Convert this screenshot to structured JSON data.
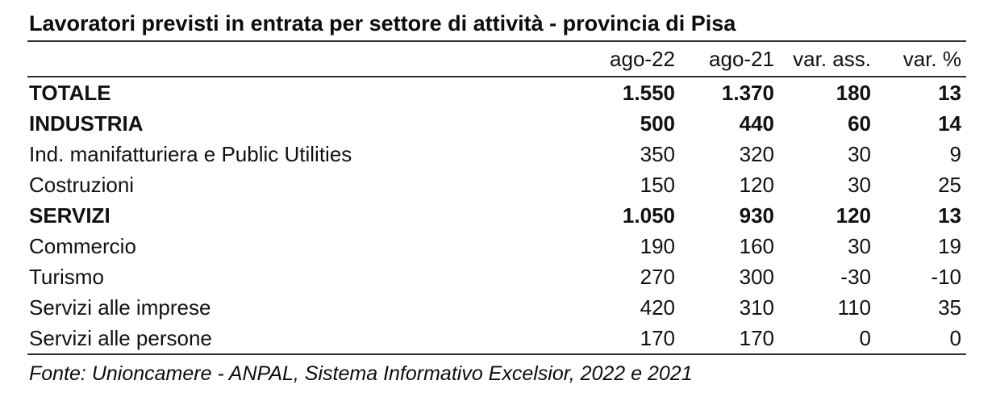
{
  "title": "Lavoratori previsti in entrata per settore di attività - provincia di Pisa",
  "table": {
    "columns": [
      "ago-22",
      "ago-21",
      "var. ass.",
      "var. %"
    ],
    "rows": [
      {
        "label": "TOTALE",
        "ago_22": "1.550",
        "ago_21": "1.370",
        "var_ass": "180",
        "var_pct": "13",
        "emphasis": true
      },
      {
        "label": "INDUSTRIA",
        "ago_22": "500",
        "ago_21": "440",
        "var_ass": "60",
        "var_pct": "14",
        "emphasis": true
      },
      {
        "label": "Ind. manifatturiera e Public Utilities",
        "ago_22": "350",
        "ago_21": "320",
        "var_ass": "30",
        "var_pct": "9",
        "emphasis": false
      },
      {
        "label": "Costruzioni",
        "ago_22": "150",
        "ago_21": "120",
        "var_ass": "30",
        "var_pct": "25",
        "emphasis": false
      },
      {
        "label": "SERVIZI",
        "ago_22": "1.050",
        "ago_21": "930",
        "var_ass": "120",
        "var_pct": "13",
        "emphasis": true
      },
      {
        "label": "Commercio",
        "ago_22": "190",
        "ago_21": "160",
        "var_ass": "30",
        "var_pct": "19",
        "emphasis": false
      },
      {
        "label": "Turismo",
        "ago_22": "270",
        "ago_21": "300",
        "var_ass": "-30",
        "var_pct": "-10",
        "emphasis": false
      },
      {
        "label": "Servizi alle imprese",
        "ago_22": "420",
        "ago_21": "310",
        "var_ass": "110",
        "var_pct": "35",
        "emphasis": false
      },
      {
        "label": "Servizi alle persone",
        "ago_22": "170",
        "ago_21": "170",
        "var_ass": "0",
        "var_pct": "0",
        "emphasis": false
      }
    ]
  },
  "footer": {
    "source_note": "Fonte: Unioncamere - ANPAL, Sistema Informativo Excelsior, 2022 e 2021"
  },
  "colors": {
    "text": "#111111",
    "rule": "#2e2e2e",
    "background": "#ffffff"
  }
}
